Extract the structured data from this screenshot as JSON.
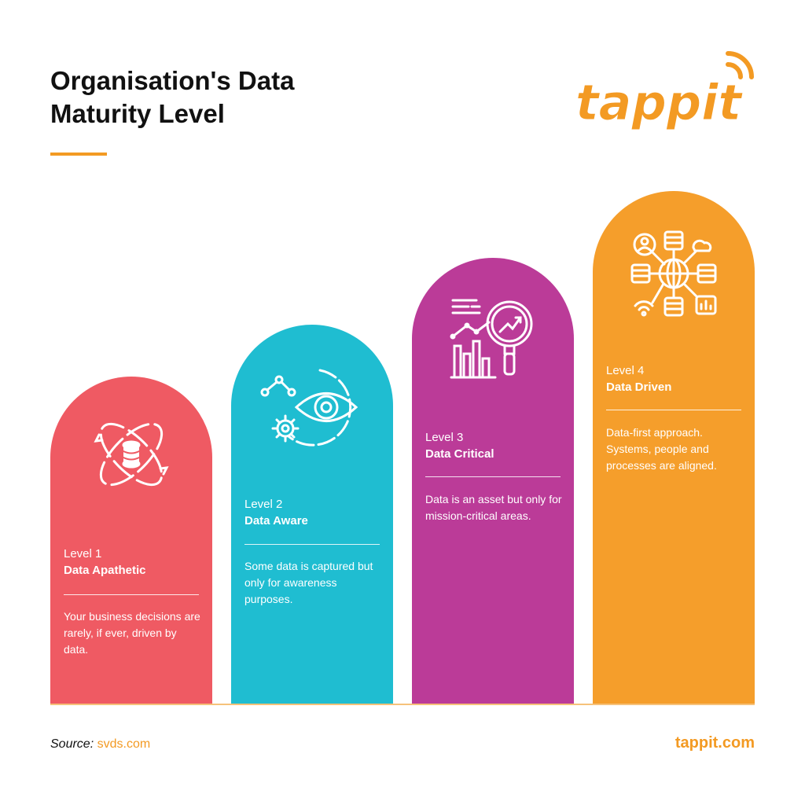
{
  "title": {
    "line1": "Organisation's Data",
    "line2": "Maturity Level"
  },
  "logo": {
    "text": "tappit"
  },
  "levels": [
    {
      "number": "Level 1",
      "name": "Data Apathetic",
      "description": "Your business decisions are rarely, if ever, driven by data.",
      "icon": "database-cycle-icon",
      "color": "#ef5a63"
    },
    {
      "number": "Level 2",
      "name": "Data Aware",
      "description": "Some data is captured but only for awareness purposes.",
      "icon": "eye-analytics-icon",
      "color": "#1fbdd1"
    },
    {
      "number": "Level 3",
      "name": "Data Critical",
      "description": "Data is an asset but only for mission-critical areas.",
      "icon": "magnifier-chart-icon",
      "color": "#bb3b98"
    },
    {
      "number": "Level 4",
      "name": "Data Driven",
      "description": "Data-first approach. Systems, people and processes are aligned.",
      "icon": "data-network-icon",
      "color": "#f59e2b"
    }
  ],
  "footer": {
    "source_label": "Source:",
    "source_value": "svds.com",
    "website": "tappit.com"
  },
  "colors": {
    "accent": "#f39a23",
    "text": "#111111"
  }
}
